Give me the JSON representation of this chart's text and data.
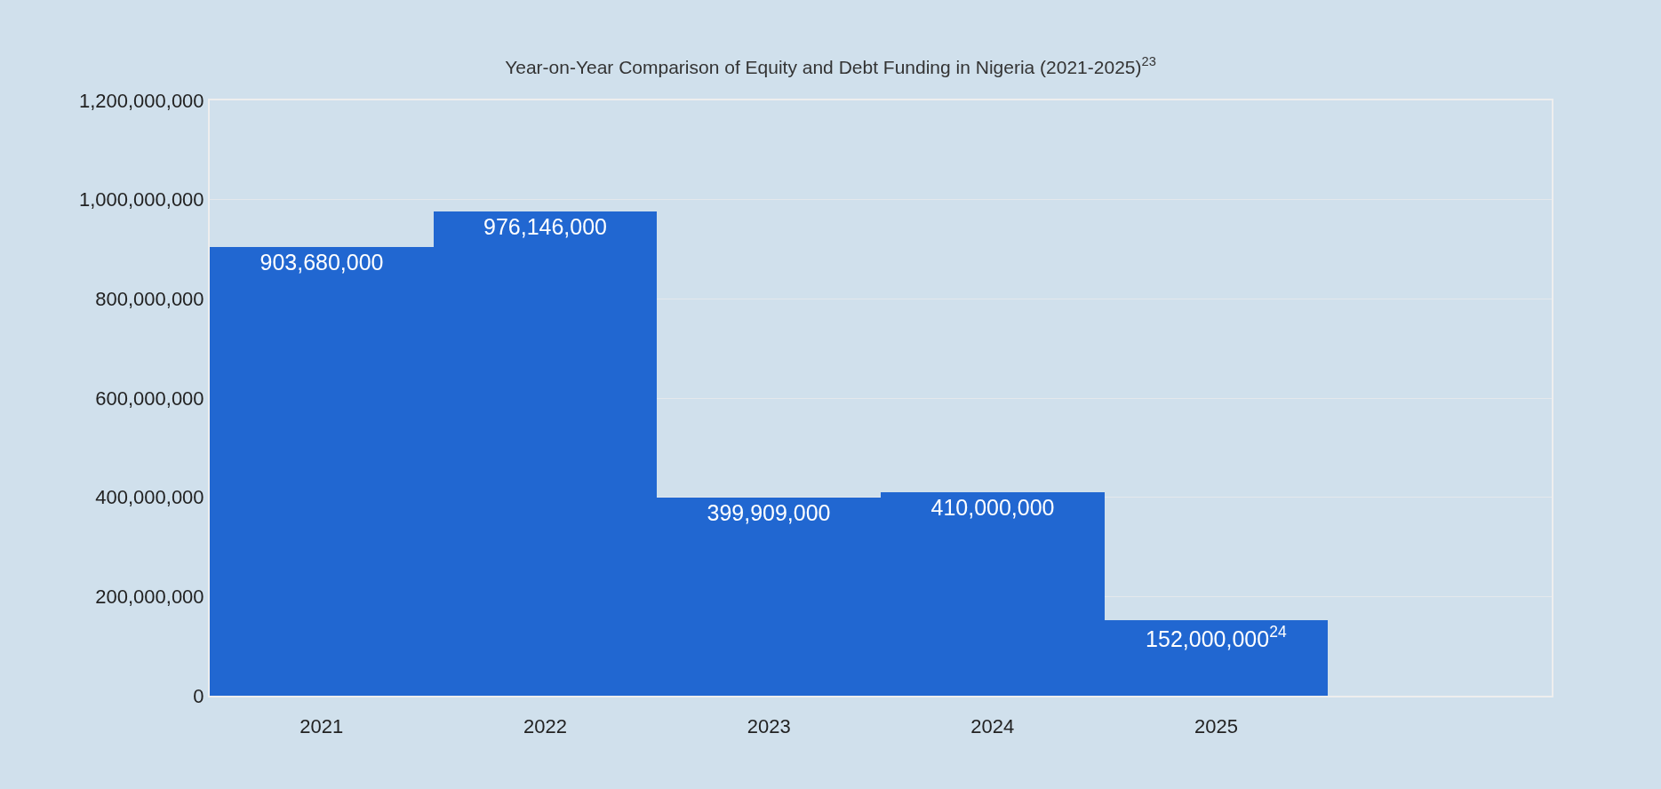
{
  "chart_data": {
    "type": "bar",
    "title": "Year-on-Year Comparison of Equity and Debt Funding in Nigeria (2021-2025)$^{23}$",
    "categories": [
      "2021",
      "2022",
      "2023",
      "2024",
      "2025",
      null
    ],
    "values": [
      903680000,
      976146000,
      399909000,
      410000000,
      152000000,
      null
    ],
    "value_labels": [
      "903,680,000",
      "976,146,000",
      "399,909,000",
      "410,000,000",
      "152,000,000$^{24}$",
      null
    ],
    "color": "#2167d1",
    "ylim": [
      0,
      1200000000
    ],
    "yticks": [
      {
        "value": 0,
        "label": "0"
      },
      {
        "value": 200000000,
        "label": "200,000,000"
      },
      {
        "value": 400000000,
        "label": "400,000,000"
      },
      {
        "value": 600000000,
        "label": "600,000,000"
      },
      {
        "value": 800000000,
        "label": "800,000,000"
      },
      {
        "value": 1000000000,
        "label": "1,000,000,000"
      },
      {
        "value": 1200000000,
        "label": "1,200,000,000"
      }
    ],
    "grid": "y"
  }
}
